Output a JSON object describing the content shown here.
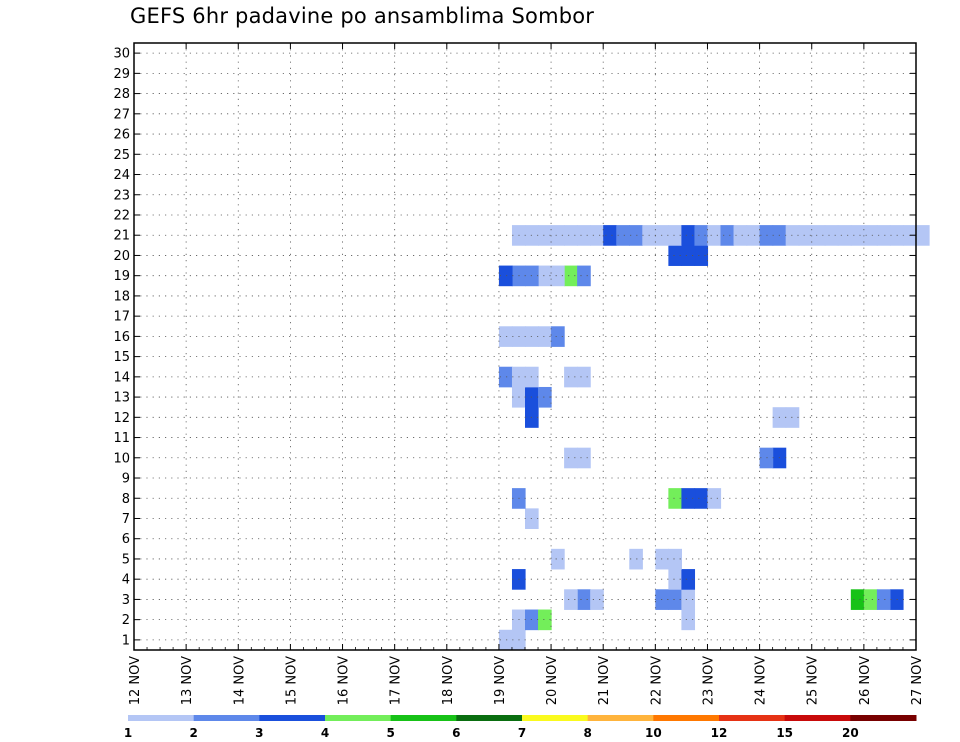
{
  "chart_data": {
    "type": "heatmap",
    "title": "GEFS 6hr padavine po ansamblima Sombor",
    "y_ticks": [
      "1",
      "2",
      "3",
      "4",
      "5",
      "6",
      "7",
      "8",
      "9",
      "10",
      "11",
      "12",
      "13",
      "14",
      "15",
      "16",
      "17",
      "18",
      "19",
      "20",
      "21",
      "22",
      "23",
      "24",
      "25",
      "26",
      "27",
      "28",
      "29",
      "30"
    ],
    "ylim": [
      0.5,
      30.5
    ],
    "x_ticks": [
      "12 NOV",
      "13 NOV",
      "14 NOV",
      "15 NOV",
      "16 NOV",
      "17 NOV",
      "18 NOV",
      "19 NOV",
      "20 NOV",
      "21 NOV",
      "22 NOV",
      "23 NOV",
      "24 NOV",
      "25 NOV",
      "26 NOV",
      "27 NOV"
    ],
    "xlim": [
      0,
      15
    ],
    "grid": true,
    "legend": "bottom",
    "colorbar": {
      "levels": [
        "1",
        "2",
        "3",
        "4",
        "5",
        "6",
        "7",
        "8",
        "10",
        "12",
        "15",
        "20"
      ],
      "colors": [
        "#b4c6f5",
        "#5e88ea",
        "#1a4fdc",
        "#73ee5a",
        "#17c217",
        "#0a6e10",
        "#fafa1e",
        "#ffb43c",
        "#ff7800",
        "#e63214",
        "#c80a0a",
        "#780000"
      ]
    },
    "cells": [
      [
        7.0,
        1,
        1
      ],
      [
        7.25,
        1,
        1
      ],
      [
        7.25,
        2,
        1
      ],
      [
        7.5,
        2,
        2
      ],
      [
        7.75,
        2,
        4
      ],
      [
        10.5,
        2,
        1
      ],
      [
        8.5,
        3,
        2
      ],
      [
        8.75,
        3,
        1
      ],
      [
        8.25,
        3,
        1
      ],
      [
        10.25,
        3,
        2
      ],
      [
        10.0,
        3,
        2
      ],
      [
        10.5,
        3,
        1
      ],
      [
        13.75,
        3,
        5
      ],
      [
        14.0,
        3,
        4
      ],
      [
        14.5,
        3,
        3
      ],
      [
        14.25,
        3,
        2
      ],
      [
        7.25,
        4,
        3
      ],
      [
        10.25,
        4,
        1
      ],
      [
        10.5,
        4,
        3
      ],
      [
        8.0,
        5,
        1
      ],
      [
        9.5,
        5,
        1
      ],
      [
        10.25,
        5,
        1
      ],
      [
        10.0,
        5,
        1
      ],
      [
        7.5,
        7,
        1
      ],
      [
        7.25,
        8,
        2
      ],
      [
        10.25,
        8,
        4
      ],
      [
        10.75,
        8,
        3
      ],
      [
        10.5,
        8,
        3
      ],
      [
        11.0,
        8,
        1
      ],
      [
        8.25,
        10,
        1
      ],
      [
        8.5,
        10,
        1
      ],
      [
        12.25,
        10,
        3
      ],
      [
        12.0,
        10,
        2
      ],
      [
        12.25,
        12,
        1
      ],
      [
        12.5,
        12,
        1
      ],
      [
        7.5,
        12,
        3
      ],
      [
        7.25,
        13,
        1
      ],
      [
        7.5,
        13,
        3
      ],
      [
        7.75,
        13,
        2
      ],
      [
        7.0,
        14,
        2
      ],
      [
        7.25,
        14,
        1
      ],
      [
        7.5,
        14,
        1
      ],
      [
        8.25,
        14,
        1
      ],
      [
        8.5,
        14,
        1
      ],
      [
        7.0,
        16,
        1
      ],
      [
        7.25,
        16,
        1
      ],
      [
        7.5,
        16,
        1
      ],
      [
        7.75,
        16,
        1
      ],
      [
        8.0,
        16,
        2
      ],
      [
        7.75,
        19,
        1
      ],
      [
        7.5,
        19,
        2
      ],
      [
        7.25,
        19,
        2
      ],
      [
        8.25,
        19,
        4
      ],
      [
        7.0,
        19,
        3
      ],
      [
        8.0,
        19,
        1
      ],
      [
        8.5,
        19,
        2
      ],
      [
        10.75,
        20,
        3
      ],
      [
        10.5,
        20,
        3
      ],
      [
        10.25,
        20,
        3
      ],
      [
        7.25,
        21,
        1
      ],
      [
        7.5,
        21,
        1
      ],
      [
        7.75,
        21,
        1
      ],
      [
        8.0,
        21,
        1
      ],
      [
        8.25,
        21,
        1
      ],
      [
        8.5,
        21,
        1
      ],
      [
        8.75,
        21,
        1
      ],
      [
        9.0,
        21,
        3
      ],
      [
        9.25,
        21,
        2
      ],
      [
        9.5,
        21,
        2
      ],
      [
        9.75,
        21,
        1
      ],
      [
        10.0,
        21,
        1
      ],
      [
        10.25,
        21,
        1
      ],
      [
        10.5,
        21,
        3
      ],
      [
        10.75,
        21,
        2
      ],
      [
        11.0,
        21,
        1
      ],
      [
        11.25,
        21,
        2
      ],
      [
        11.5,
        21,
        1
      ],
      [
        11.75,
        21,
        1
      ],
      [
        12.0,
        21,
        2
      ],
      [
        12.25,
        21,
        2
      ],
      [
        12.5,
        21,
        1
      ],
      [
        12.75,
        21,
        1
      ],
      [
        13.0,
        21,
        1
      ],
      [
        13.25,
        21,
        1
      ],
      [
        13.5,
        21,
        1
      ],
      [
        13.75,
        21,
        1
      ],
      [
        14.0,
        21,
        1
      ],
      [
        14.25,
        21,
        1
      ],
      [
        14.5,
        21,
        1
      ],
      [
        14.75,
        21,
        1
      ],
      [
        15.0,
        21,
        1
      ]
    ]
  }
}
